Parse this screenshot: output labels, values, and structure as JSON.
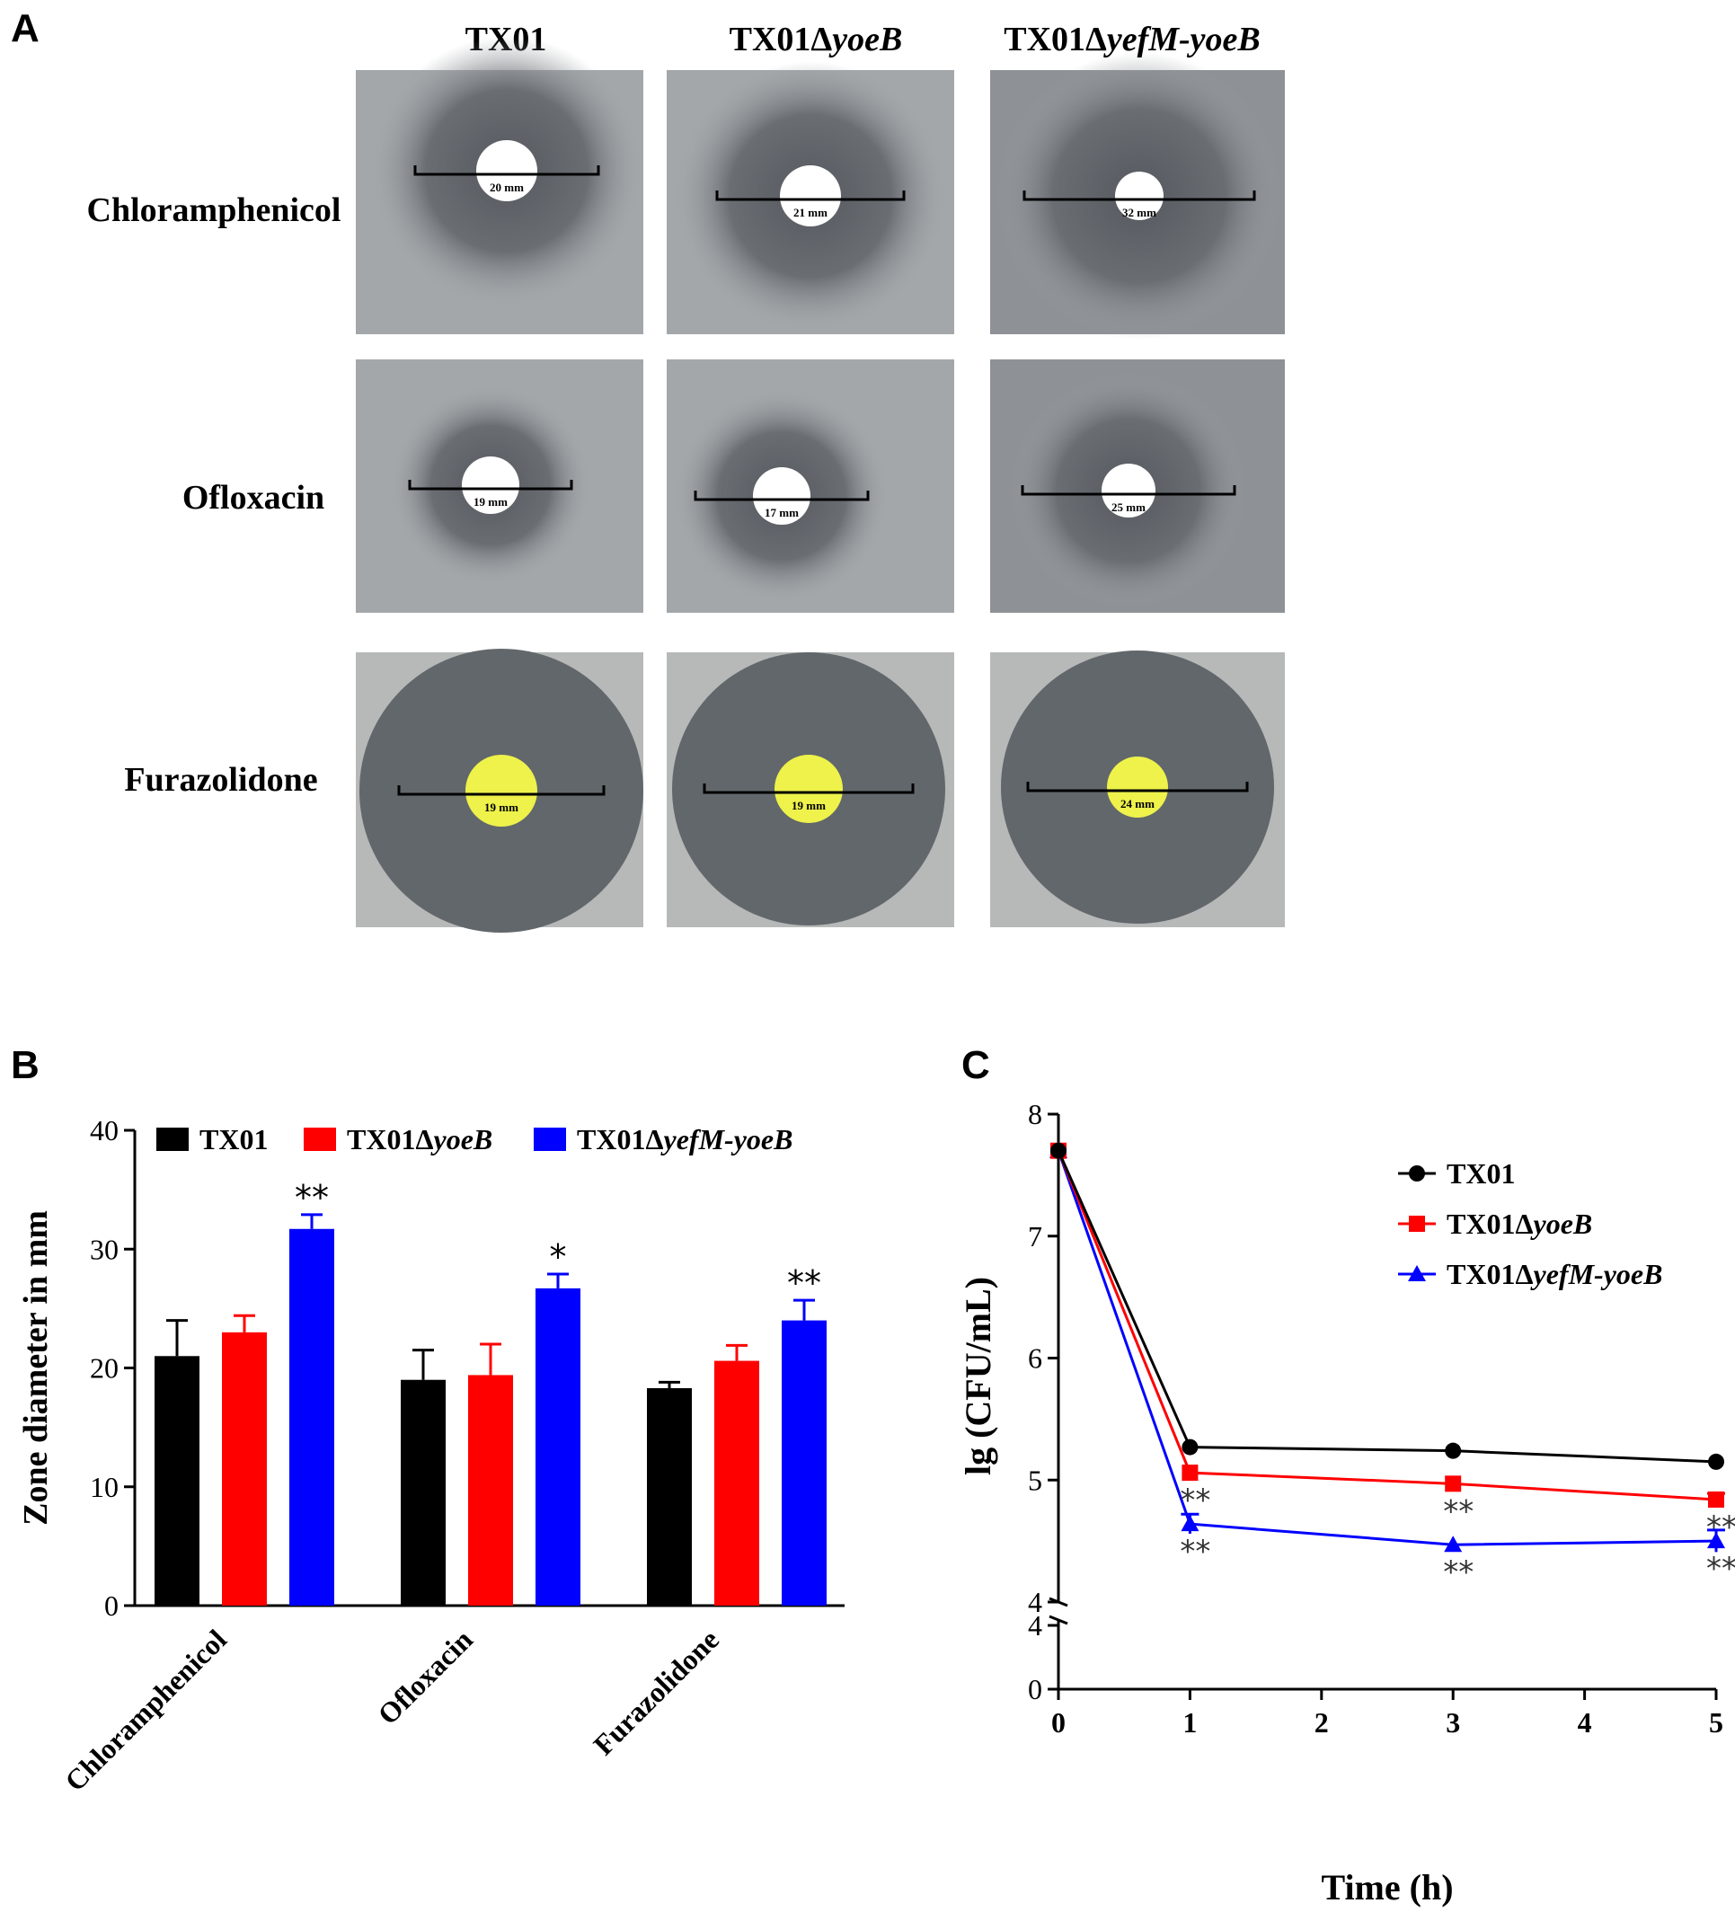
{
  "panels": {
    "a": "A",
    "b": "B",
    "c": "C"
  },
  "panel_a": {
    "strains": [
      {
        "base": "TX01",
        "suffix": ""
      },
      {
        "base": "TX01Δ",
        "suffix": "yoeB"
      },
      {
        "base": "TX01Δ",
        "suffix": "yefM-yoeB"
      }
    ],
    "antibiotics": [
      "Chloramphenicol",
      "Ofloxacin",
      "Furazolidone"
    ],
    "zones": [
      {
        "disc": "white",
        "labels": [
          "20 mm",
          "21 mm",
          "32 mm"
        ]
      },
      {
        "disc": "white",
        "labels": [
          "19 mm",
          "17 mm",
          "25 mm"
        ]
      },
      {
        "disc": "yellow",
        "labels": [
          "19 mm",
          "19 mm",
          "24 mm"
        ]
      }
    ]
  },
  "chart_data": [
    {
      "type": "bar",
      "categories": [
        "Chloramphenicol",
        "Ofloxacin",
        "Furazolidone"
      ],
      "series": [
        {
          "name": "TX01",
          "name_base": "TX01",
          "name_suffix": "",
          "color": "#000000",
          "values": [
            21.0,
            19.0,
            18.3
          ],
          "errors": [
            3.0,
            2.5,
            0.5
          ],
          "sig": [
            "",
            "",
            ""
          ]
        },
        {
          "name": "TX01ΔyoeB",
          "name_base": "TX01Δ",
          "name_suffix": "yoeB",
          "color": "#ff0000",
          "values": [
            23.0,
            19.4,
            20.6
          ],
          "errors": [
            1.4,
            2.6,
            1.3
          ],
          "sig": [
            "",
            "",
            ""
          ]
        },
        {
          "name": "TX01ΔyefM-yoeB",
          "name_base": "TX01Δ",
          "name_suffix": "yefM-yoeB",
          "color": "#0000ff",
          "values": [
            31.7,
            26.7,
            24.0
          ],
          "errors": [
            1.2,
            1.2,
            1.7
          ],
          "sig": [
            "**",
            "*",
            "**"
          ]
        }
      ],
      "title": "",
      "xlabel": "",
      "ylabel": "Zone diameter in mm",
      "ylim": [
        0,
        40
      ],
      "yticks": [
        0,
        10,
        20,
        30,
        40
      ],
      "legend": "top"
    },
    {
      "type": "line",
      "x": [
        0,
        1,
        3,
        5
      ],
      "series": [
        {
          "name": "TX01",
          "name_base": "TX01",
          "name_suffix": "",
          "color": "#000000",
          "marker": "circle",
          "values": [
            7.7,
            5.27,
            5.24,
            5.15
          ],
          "errors": [
            0,
            0,
            0,
            0
          ],
          "sig": [
            "",
            "",
            "",
            ""
          ]
        },
        {
          "name": "TX01ΔyoeB",
          "name_base": "TX01Δ",
          "name_suffix": "yoeB",
          "color": "#ff0000",
          "marker": "square",
          "values": [
            7.7,
            5.06,
            4.97,
            4.84
          ],
          "errors": [
            0,
            0,
            0,
            0.05
          ],
          "sig": [
            "",
            "**",
            "**",
            "**"
          ]
        },
        {
          "name": "TX01ΔyefM-yoeB",
          "name_base": "TX01Δ",
          "name_suffix": "yefM-yoeB",
          "color": "#0000ff",
          "marker": "triangle",
          "values": [
            7.7,
            4.64,
            4.47,
            4.5
          ],
          "errors": [
            0,
            0.08,
            0,
            0.09
          ],
          "sig": [
            "",
            "**",
            "**",
            "**"
          ]
        }
      ],
      "title": "",
      "xlabel": "Time (h)",
      "ylabel": "lg (CFU/mL)",
      "xlim": [
        0,
        5
      ],
      "xticks": [
        0,
        1,
        2,
        3,
        4,
        5
      ],
      "ylim": [
        4,
        8
      ],
      "yticks": [
        4,
        5,
        6,
        7,
        8
      ],
      "ybreak": {
        "lower_ticks": [
          0,
          4
        ]
      },
      "legend": "top-right"
    }
  ]
}
